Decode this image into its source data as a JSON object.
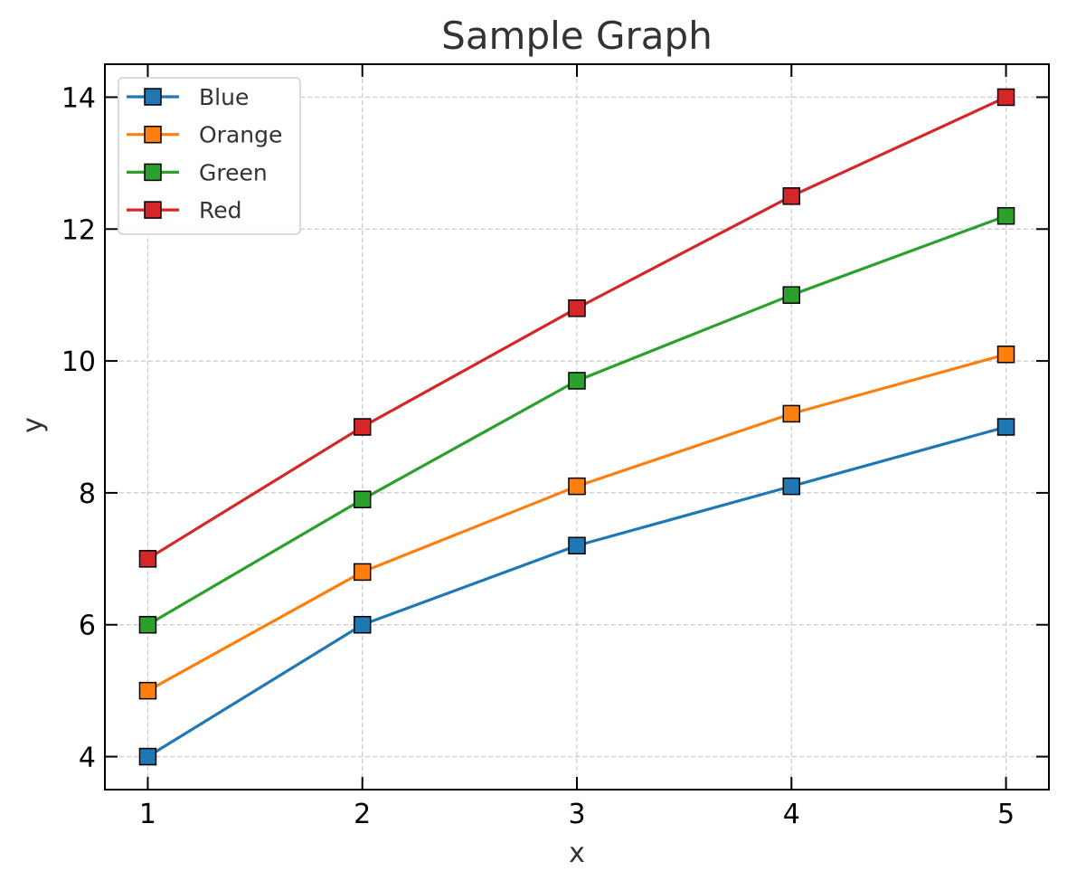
{
  "chart_data": {
    "type": "line",
    "title": "Sample Graph",
    "xlabel": "x",
    "ylabel": "y",
    "x": [
      1,
      2,
      3,
      4,
      5
    ],
    "xlim": [
      0.8,
      5.2
    ],
    "ylim": [
      3.5,
      14.5
    ],
    "xticks": [
      1,
      2,
      3,
      4,
      5
    ],
    "yticks": [
      4,
      6,
      8,
      10,
      12,
      14
    ],
    "grid": true,
    "grid_style": "dashed",
    "marker": "square",
    "legend_position": "top-left",
    "series": [
      {
        "name": "Blue",
        "color": "#1f77b4",
        "values": [
          4,
          6,
          7.2,
          8.1,
          9
        ]
      },
      {
        "name": "Orange",
        "color": "#ff7f0e",
        "values": [
          5,
          6.8,
          8.1,
          9.2,
          10.1
        ]
      },
      {
        "name": "Green",
        "color": "#2ca02c",
        "values": [
          6,
          7.9,
          9.7,
          11,
          12.2
        ]
      },
      {
        "name": "Red",
        "color": "#d62728",
        "values": [
          7,
          9,
          10.8,
          12.5,
          14
        ]
      }
    ]
  }
}
